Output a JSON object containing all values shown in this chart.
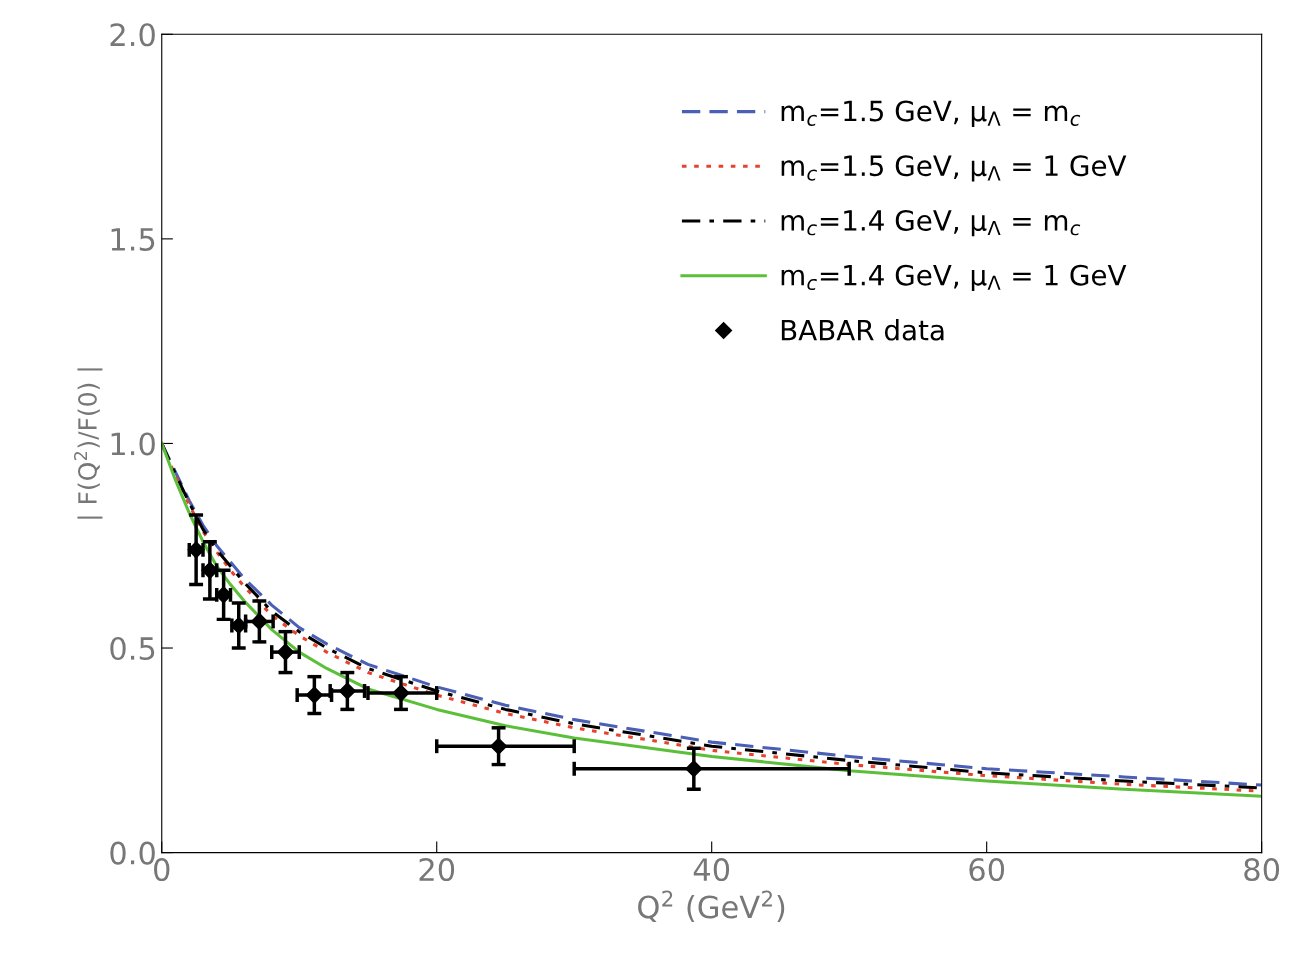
{
  "chart_data": {
    "type": "line",
    "xlabel": "Q$^{2}$ (GeV$^{2}$)",
    "ylabel": "| F(Q$^{2}$)/F(0) |",
    "xlim": [
      0,
      80
    ],
    "ylim": [
      0,
      2.0
    ],
    "xticks": [
      0,
      20,
      40,
      60,
      80
    ],
    "yticks": [
      {
        "value": 0,
        "label": "0.0"
      },
      {
        "value": 0.5,
        "label": "0.5"
      },
      {
        "value": 1.0,
        "label": "1.0"
      },
      {
        "value": 1.5,
        "label": "1.5"
      },
      {
        "value": 2.0,
        "label": "2.0"
      }
    ],
    "grid": false,
    "legend": "top right",
    "series": [
      {
        "name": "m$_{c}$=1.5 GeV, μ$_{Λ}$ = m$_{c}$",
        "line_style": "dashed",
        "marker": "none",
        "color": "#4a5fb5",
        "x": [
          0,
          1,
          2,
          3,
          4,
          5,
          6,
          8,
          10,
          12,
          15,
          20,
          25,
          30,
          40,
          50,
          60,
          70,
          80
        ],
        "values": [
          1,
          0.93,
          0.86,
          0.8,
          0.75,
          0.71,
          0.67,
          0.605,
          0.55,
          0.51,
          0.46,
          0.405,
          0.36,
          0.325,
          0.27,
          0.235,
          0.205,
          0.185,
          0.165
        ]
      },
      {
        "name": "m$_{c}$=1.5 GeV, μ$_{Λ}$ = 1 GeV",
        "line_style": "dotted",
        "marker": "none",
        "color": "#e8412c",
        "x": [
          0,
          1,
          2,
          3,
          4,
          5,
          6,
          8,
          10,
          12,
          15,
          20,
          25,
          30,
          40,
          50,
          60,
          70,
          80
        ],
        "values": [
          1,
          0.92,
          0.85,
          0.785,
          0.735,
          0.69,
          0.65,
          0.58,
          0.53,
          0.49,
          0.44,
          0.385,
          0.34,
          0.305,
          0.25,
          0.215,
          0.188,
          0.167,
          0.15
        ]
      },
      {
        "name": "m$_{c}$=1.4 GeV, μ$_{Λ}$ = m$_{c}$",
        "line_style": "dashdot",
        "marker": "none",
        "color": "#000000",
        "x": [
          0,
          1,
          2,
          3,
          4,
          5,
          6,
          8,
          10,
          12,
          15,
          20,
          25,
          30,
          40,
          50,
          60,
          70,
          80
        ],
        "values": [
          1,
          0.925,
          0.855,
          0.79,
          0.74,
          0.7,
          0.66,
          0.59,
          0.54,
          0.5,
          0.45,
          0.395,
          0.35,
          0.315,
          0.26,
          0.225,
          0.195,
          0.175,
          0.158
        ]
      },
      {
        "name": "m$_{c}$=1.4 GeV, μ$_{Λ}$ = 1 GeV",
        "line_style": "solid",
        "marker": "none",
        "color": "#5cbf3a",
        "x": [
          0,
          1,
          2,
          3,
          4,
          5,
          6,
          8,
          10,
          12,
          15,
          20,
          25,
          30,
          40,
          50,
          60,
          70,
          80
        ],
        "values": [
          1,
          0.91,
          0.83,
          0.76,
          0.7,
          0.655,
          0.615,
          0.545,
          0.49,
          0.45,
          0.4,
          0.35,
          0.31,
          0.28,
          0.235,
          0.2,
          0.175,
          0.155,
          0.138
        ]
      },
      {
        "name": "BABAR data",
        "type": "scatter",
        "marker": "diamond",
        "color": "#000000",
        "x": [
          2.5,
          3.5,
          4.5,
          5.6,
          7.1,
          9.0,
          11.1,
          13.5,
          17.4,
          24.5,
          38.7
        ],
        "values": [
          0.74,
          0.69,
          0.63,
          0.555,
          0.565,
          0.49,
          0.385,
          0.395,
          0.39,
          0.26,
          0.205
        ],
        "errors": [
          0.085,
          0.07,
          0.06,
          0.055,
          0.05,
          0.05,
          0.045,
          0.045,
          0.04,
          0.045,
          0.05
        ],
        "xerrors": [
          0.5,
          0.5,
          0.5,
          0.5,
          1,
          1,
          1.25,
          1.25,
          [
            15,
            20
          ],
          [
            20,
            30
          ],
          [
            30,
            50
          ]
        ]
      }
    ]
  }
}
